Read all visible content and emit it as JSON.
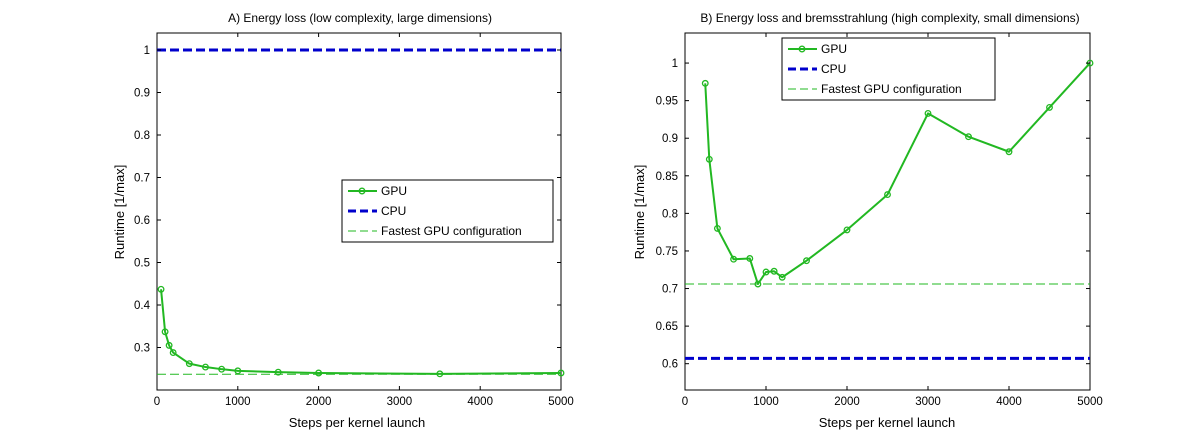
{
  "chart_data": [
    {
      "type": "line",
      "title": "A) Energy loss (low complexity, large dimensions)",
      "xlabel": "Steps per kernel launch",
      "ylabel": "Runtime [1/max]",
      "xlim": [
        0,
        5000
      ],
      "ylim": [
        0.2,
        1.04
      ],
      "xticks": [
        0,
        1000,
        2000,
        3000,
        4000,
        5000
      ],
      "yticks": [
        0.3,
        0.4,
        0.5,
        0.6,
        0.7,
        0.8,
        0.9,
        1
      ],
      "grid": false,
      "legend_position": "right",
      "colors": {
        "gpu": "#22b822",
        "cpu": "#0000cc",
        "fastest": "#22b822"
      },
      "legend": [
        "GPU",
        "CPU",
        "Fastest GPU configuration"
      ],
      "series": [
        {
          "name": "GPU",
          "style": "solid-marker",
          "x": [
            50,
            100,
            150,
            200,
            400,
            600,
            800,
            1000,
            1500,
            2000,
            3500,
            5000
          ],
          "y": [
            0.437,
            0.337,
            0.305,
            0.288,
            0.262,
            0.254,
            0.249,
            0.245,
            0.242,
            0.24,
            0.238,
            0.24
          ]
        },
        {
          "name": "CPU",
          "style": "thick-dashed",
          "x": [
            0,
            5000
          ],
          "y": [
            1,
            1
          ]
        },
        {
          "name": "Fastest GPU configuration",
          "style": "thin-dashed",
          "x": [
            0,
            5000
          ],
          "y": [
            0.237,
            0.237
          ]
        }
      ]
    },
    {
      "type": "line",
      "title": "B) Energy loss and bremsstrahlung (high complexity, small dimensions)",
      "xlabel": "Steps per kernel launch",
      "ylabel": "Runtime [1/max]",
      "xlim": [
        0,
        5000
      ],
      "ylim": [
        0.565,
        1.04
      ],
      "xticks": [
        0,
        1000,
        2000,
        3000,
        4000,
        5000
      ],
      "yticks": [
        0.6,
        0.65,
        0.7,
        0.75,
        0.8,
        0.85,
        0.9,
        0.95,
        1
      ],
      "grid": false,
      "legend_position": "top-left",
      "colors": {
        "gpu": "#22b822",
        "cpu": "#0000cc",
        "fastest": "#22b822"
      },
      "legend": [
        "GPU",
        "CPU",
        "Fastest GPU configuration"
      ],
      "series": [
        {
          "name": "GPU",
          "style": "solid-marker",
          "x": [
            250,
            300,
            400,
            600,
            800,
            900,
            1000,
            1100,
            1200,
            1500,
            2000,
            2500,
            3000,
            3500,
            4000,
            4500,
            5000
          ],
          "y": [
            0.973,
            0.872,
            0.78,
            0.739,
            0.74,
            0.706,
            0.722,
            0.723,
            0.715,
            0.737,
            0.778,
            0.825,
            0.933,
            0.902,
            0.882,
            0.941,
            1.0
          ]
        },
        {
          "name": "CPU",
          "style": "thick-dashed",
          "x": [
            0,
            5000
          ],
          "y": [
            0.607,
            0.607
          ]
        },
        {
          "name": "Fastest GPU configuration",
          "style": "thin-dashed",
          "x": [
            0,
            5000
          ],
          "y": [
            0.706,
            0.706
          ]
        }
      ]
    }
  ]
}
